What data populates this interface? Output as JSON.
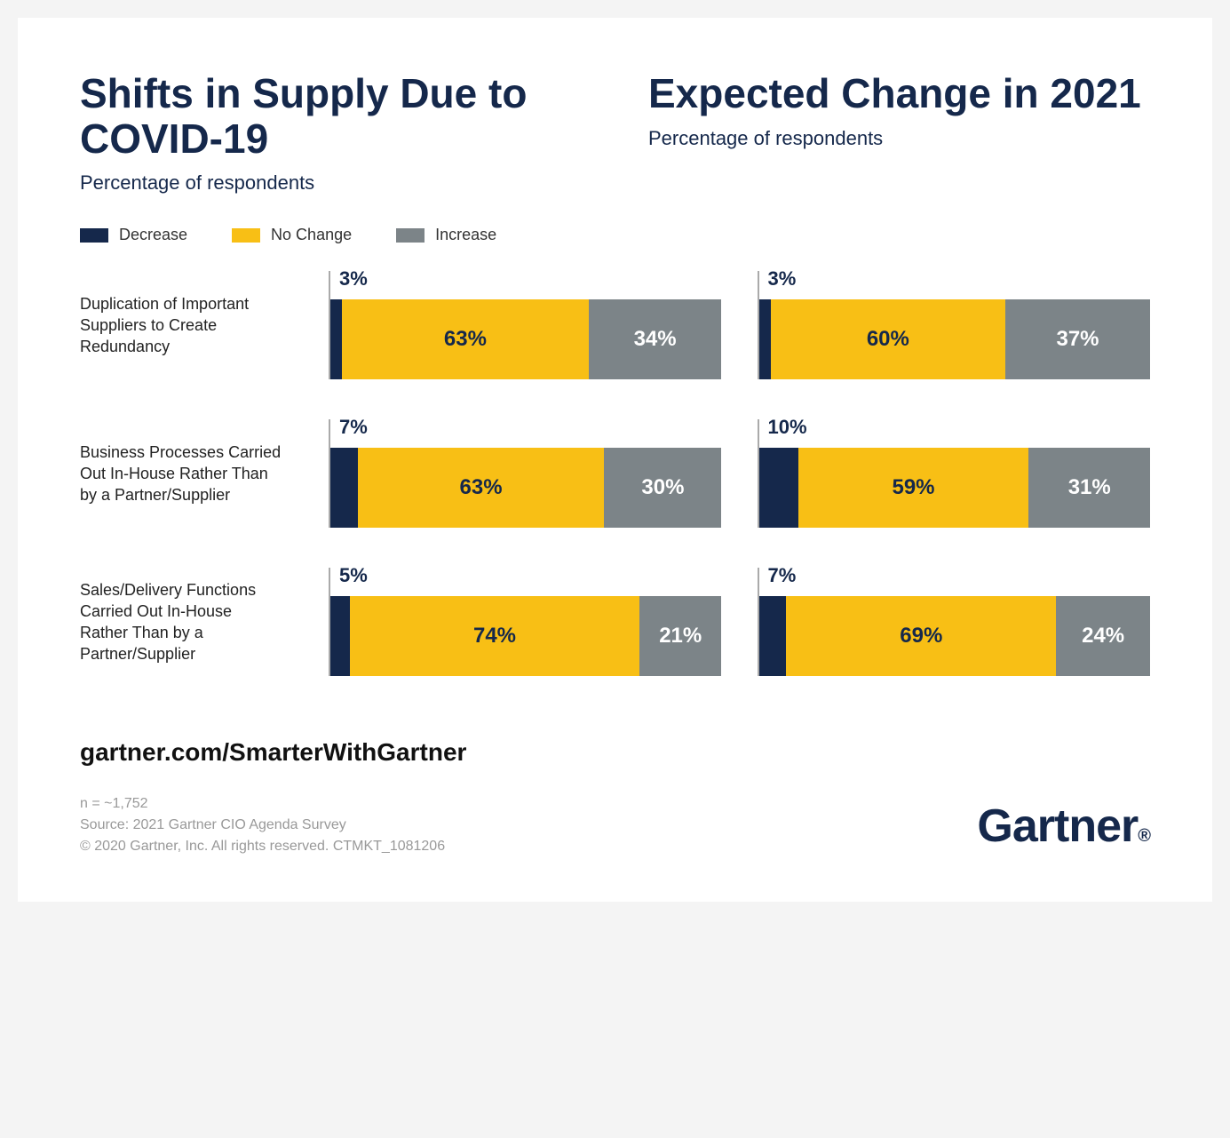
{
  "colors": {
    "decrease": "#15284b",
    "nochange": "#f8bf15",
    "increase": "#7c8488",
    "title": "#15284b",
    "background": "#ffffff"
  },
  "headers": {
    "left": {
      "title": "Shifts in Supply Due to COVID-19",
      "subtitle": "Percentage of respondents"
    },
    "right": {
      "title": "Expected Change in 2021",
      "subtitle": "Percentage of respondents"
    }
  },
  "legend": {
    "decrease": "Decrease",
    "nochange": "No Change",
    "increase": "Increase"
  },
  "rows": [
    {
      "label": "Duplication of Important Suppliers to Create Redundancy",
      "left": {
        "decrease": 3,
        "nochange": 63,
        "increase": 34
      },
      "right": {
        "decrease": 3,
        "nochange": 60,
        "increase": 37
      }
    },
    {
      "label": "Business Processes Carried Out In-House Rather Than by a Partner/Supplier",
      "left": {
        "decrease": 7,
        "nochange": 63,
        "increase": 30
      },
      "right": {
        "decrease": 10,
        "nochange": 59,
        "increase": 31
      }
    },
    {
      "label": "Sales/Delivery Functions Carried Out In-House Rather Than by a Partner/Supplier",
      "left": {
        "decrease": 5,
        "nochange": 74,
        "increase": 21
      },
      "right": {
        "decrease": 7,
        "nochange": 69,
        "increase": 24
      }
    }
  ],
  "footer": {
    "url": "gartner.com/SmarterWithGartner",
    "n": "n = ~1,752",
    "source": "Source: 2021 Gartner CIO Agenda Survey",
    "copyright": "© 2020 Gartner, Inc. All rights reserved. CTMKT_1081206",
    "logo": "Gartner",
    "logo_suffix": "®"
  }
}
